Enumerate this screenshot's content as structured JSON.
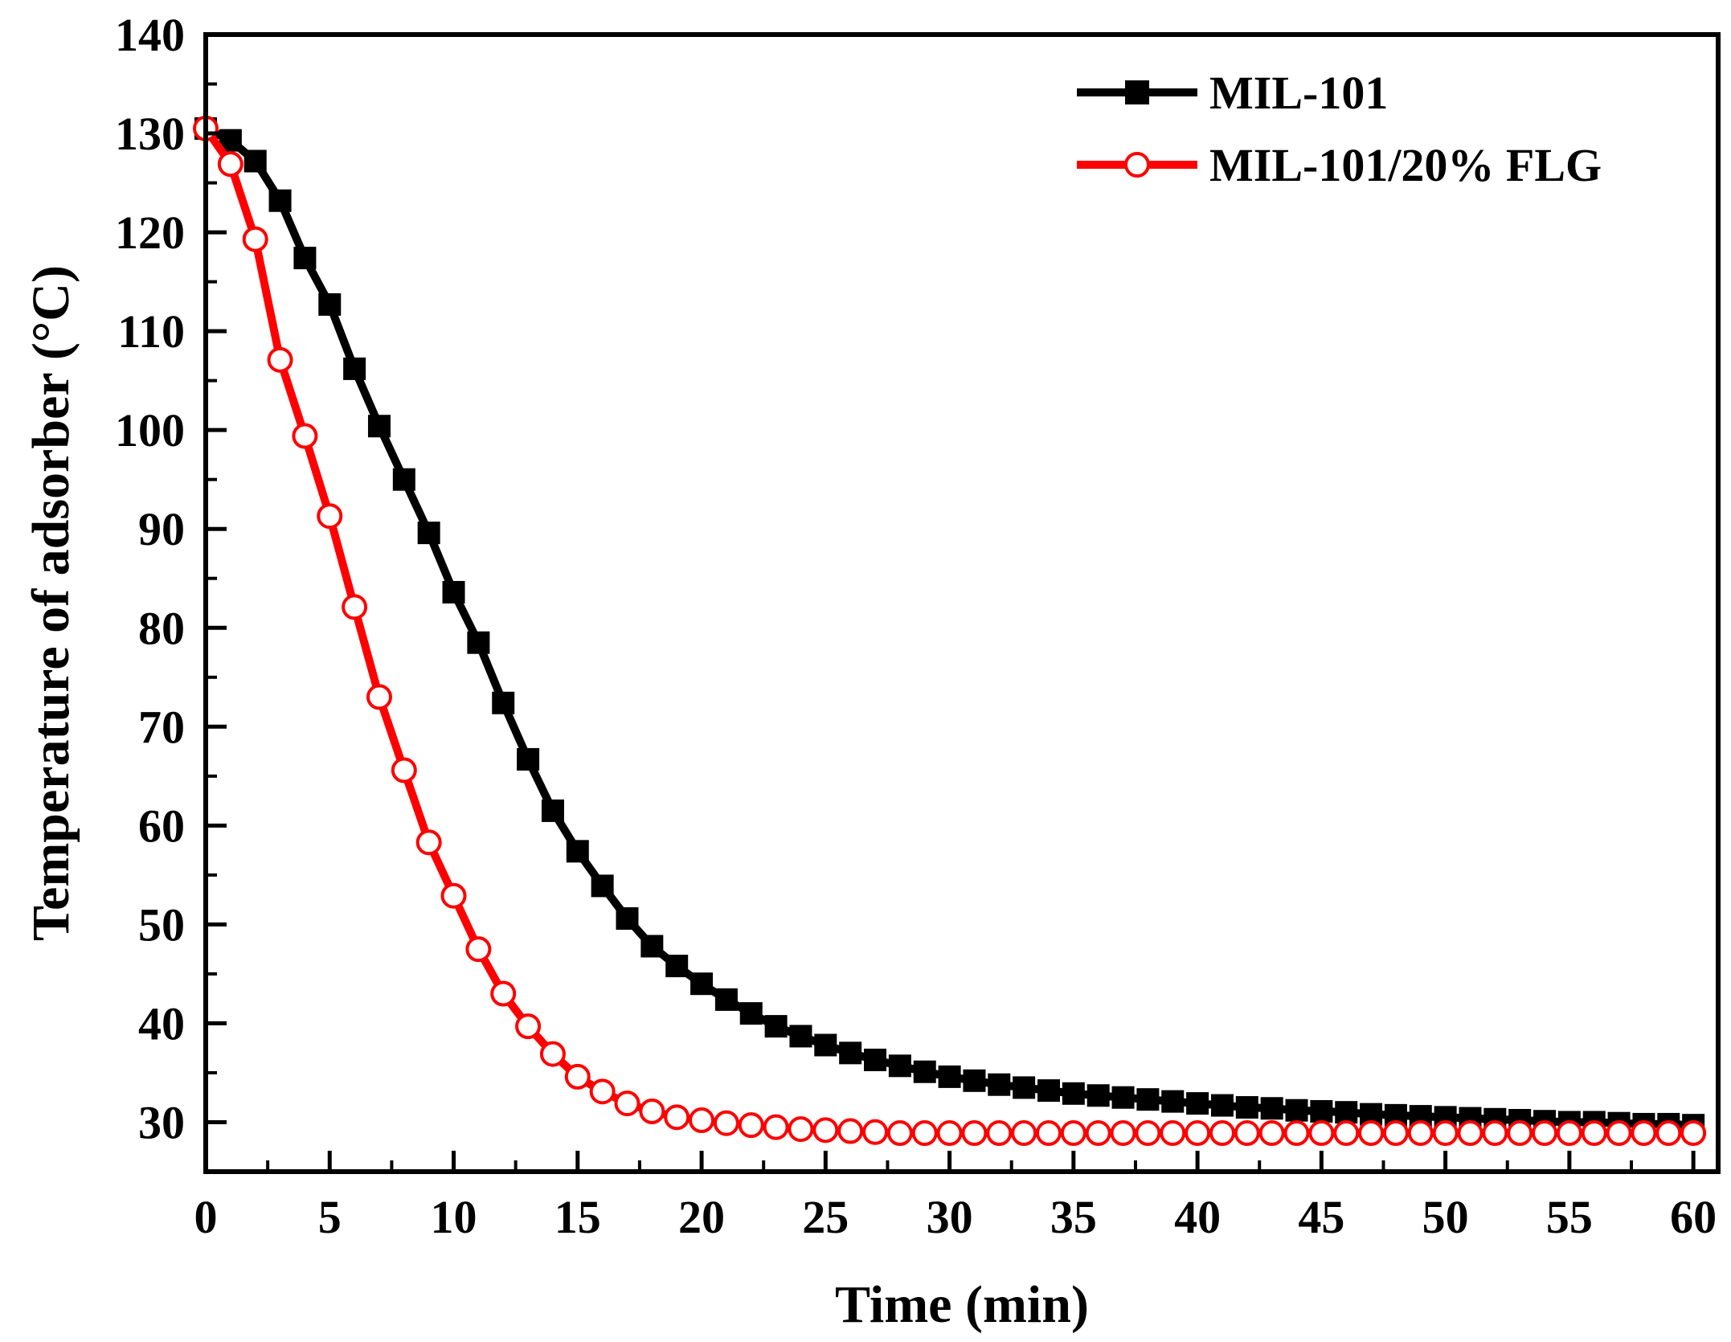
{
  "chart_data": {
    "type": "line",
    "title": "",
    "xlabel": "Time (min)",
    "ylabel": "Temperature of adsorber (°C)",
    "xlim": [
      0,
      61
    ],
    "ylim": [
      25,
      140
    ],
    "xticks": [
      0,
      5,
      10,
      15,
      20,
      25,
      30,
      35,
      40,
      45,
      50,
      55,
      60
    ],
    "yticks": [
      30,
      40,
      50,
      60,
      70,
      80,
      90,
      100,
      110,
      120,
      130,
      140
    ],
    "xtick_labels": [
      "0",
      "5",
      "10",
      "15",
      "20",
      "25",
      "30",
      "35",
      "40",
      "45",
      "50",
      "55",
      "60"
    ],
    "ytick_labels": [
      "30",
      "40",
      "50",
      "60",
      "70",
      "80",
      "90",
      "100",
      "110",
      "120",
      "130",
      "140"
    ],
    "grid": false,
    "legend_position": "top-right",
    "x": [
      0,
      1,
      2,
      3,
      4,
      5,
      6,
      7,
      8,
      9,
      10,
      11,
      12,
      13,
      14,
      15,
      16,
      17,
      18,
      19,
      20,
      21,
      22,
      23,
      24,
      25,
      26,
      27,
      28,
      29,
      30,
      31,
      32,
      33,
      34,
      35,
      36,
      37,
      38,
      39,
      40,
      41,
      42,
      43,
      44,
      45,
      46,
      47,
      48,
      49,
      50,
      51,
      52,
      53,
      54,
      55,
      56,
      57,
      58,
      59,
      60
    ],
    "series": [
      {
        "name": "MIL-101",
        "color": "#000000",
        "marker": "filled-square",
        "values": [
          130.5,
          129.3,
          127.2,
          123.2,
          117.4,
          112.7,
          106.2,
          100.4,
          95.0,
          89.6,
          83.6,
          78.5,
          72.4,
          66.7,
          61.5,
          57.4,
          53.9,
          50.6,
          47.8,
          45.8,
          44.0,
          42.4,
          41.0,
          39.7,
          38.7,
          37.8,
          37.0,
          36.3,
          35.7,
          35.1,
          34.6,
          34.2,
          33.8,
          33.5,
          33.2,
          32.9,
          32.7,
          32.5,
          32.3,
          32.1,
          31.9,
          31.7,
          31.5,
          31.4,
          31.2,
          31.1,
          31.0,
          30.8,
          30.7,
          30.6,
          30.5,
          30.4,
          30.3,
          30.2,
          30.1,
          30.0,
          30.0,
          29.9,
          29.8,
          29.8,
          29.7
        ]
      },
      {
        "name": "MIL-101/20% FLG",
        "color": "#ff0000",
        "marker": "open-circle",
        "values": [
          130.5,
          126.9,
          119.3,
          107.1,
          99.4,
          91.3,
          82.1,
          73.0,
          65.6,
          58.3,
          52.9,
          47.5,
          43.0,
          39.7,
          36.9,
          34.6,
          33.1,
          31.9,
          31.1,
          30.5,
          30.2,
          29.9,
          29.7,
          29.5,
          29.3,
          29.2,
          29.1,
          29.0,
          28.9,
          28.9,
          28.9,
          28.9,
          28.9,
          28.9,
          28.9,
          28.9,
          28.9,
          28.9,
          28.9,
          28.9,
          28.9,
          28.9,
          28.9,
          28.9,
          28.9,
          28.9,
          28.9,
          28.9,
          28.9,
          28.9,
          28.9,
          28.9,
          28.9,
          28.9,
          28.9,
          28.9,
          28.9,
          28.9,
          28.9,
          28.9,
          28.9
        ]
      }
    ]
  }
}
